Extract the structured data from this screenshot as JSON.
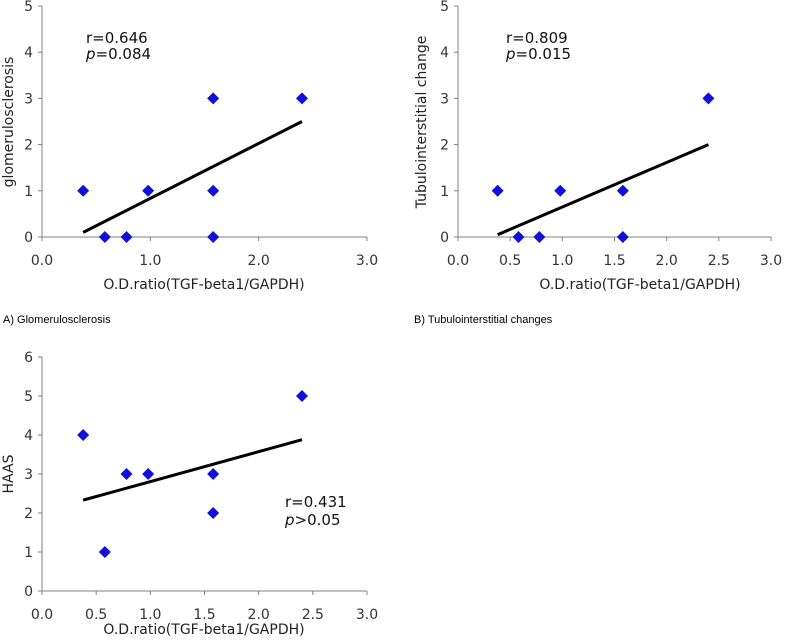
{
  "colors": {
    "marker": "#1010d8",
    "trendline": "#000000",
    "axis": "#808080"
  },
  "chart_data": [
    {
      "type": "scatter",
      "caption": "A) Glomerulosclerosis",
      "xlabel": "O.D.ratio(TGF-beta1/GAPDH)",
      "ylabel": "glomerulosclerosis",
      "xlim": [
        0,
        3
      ],
      "ylim": [
        0,
        5
      ],
      "xticks": [
        "0.0",
        "1.0",
        "2.0",
        "3.0"
      ],
      "xtick_values": [
        0,
        1,
        2,
        3
      ],
      "yticks": [
        "0",
        "1",
        "2",
        "3",
        "4",
        "5"
      ],
      "ytick_values": [
        0,
        1,
        2,
        3,
        4,
        5
      ],
      "stat_r": "r=0.646",
      "stat_p_symbol": "p",
      "stat_p_rest": "=0.084",
      "points": [
        [
          0.38,
          1
        ],
        [
          0.58,
          0
        ],
        [
          0.78,
          0
        ],
        [
          0.98,
          1
        ],
        [
          1.58,
          3
        ],
        [
          1.58,
          1
        ],
        [
          1.58,
          0
        ],
        [
          2.4,
          3
        ]
      ],
      "trendline": [
        [
          0.38,
          0.1
        ],
        [
          2.4,
          2.5
        ]
      ],
      "grid": false,
      "legend": "none"
    },
    {
      "type": "scatter",
      "caption": "B) Tubulointerstitial changes",
      "xlabel": "O.D.ratio(TGF-beta1/GAPDH)",
      "ylabel": "Tubulointerstitial change",
      "xlim": [
        0,
        3
      ],
      "ylim": [
        0,
        5
      ],
      "xticks": [
        "0.0",
        "0.5",
        "1.0",
        "1.5",
        "2.0",
        "2.5",
        "3.0"
      ],
      "xtick_values": [
        0,
        0.5,
        1,
        1.5,
        2,
        2.5,
        3
      ],
      "yticks": [
        "0",
        "1",
        "2",
        "3",
        "4",
        "5"
      ],
      "ytick_values": [
        0,
        1,
        2,
        3,
        4,
        5
      ],
      "stat_r": "r=0.809",
      "stat_p_symbol": "p",
      "stat_p_rest": "=0.015",
      "points": [
        [
          0.38,
          1
        ],
        [
          0.58,
          0
        ],
        [
          0.78,
          0
        ],
        [
          0.98,
          1
        ],
        [
          1.58,
          1
        ],
        [
          1.58,
          0
        ],
        [
          2.4,
          3
        ]
      ],
      "trendline": [
        [
          0.38,
          0.05
        ],
        [
          2.4,
          2.0
        ]
      ],
      "grid": false,
      "legend": "none"
    },
    {
      "type": "scatter",
      "caption": "",
      "xlabel": "O.D.ratio(TGF-beta1/GAPDH)",
      "ylabel": "HAAS",
      "xlim": [
        0,
        3
      ],
      "ylim": [
        0,
        6
      ],
      "xticks": [
        "0.0",
        "0.5",
        "1.0",
        "1.5",
        "2.0",
        "2.5",
        "3.0"
      ],
      "xtick_values": [
        0,
        0.5,
        1,
        1.5,
        2,
        2.5,
        3
      ],
      "yticks": [
        "0",
        "1",
        "2",
        "3",
        "4",
        "5",
        "6"
      ],
      "ytick_values": [
        0,
        1,
        2,
        3,
        4,
        5,
        6
      ],
      "stat_r": "r=0.431",
      "stat_p_symbol": "p",
      "stat_p_rest": ">0.05",
      "points": [
        [
          0.38,
          4
        ],
        [
          0.58,
          1
        ],
        [
          0.78,
          3
        ],
        [
          0.98,
          3
        ],
        [
          1.58,
          3
        ],
        [
          1.58,
          2
        ],
        [
          2.4,
          5
        ]
      ],
      "trendline": [
        [
          0.38,
          2.33
        ],
        [
          2.4,
          3.88
        ]
      ],
      "grid": false,
      "legend": "none"
    }
  ]
}
